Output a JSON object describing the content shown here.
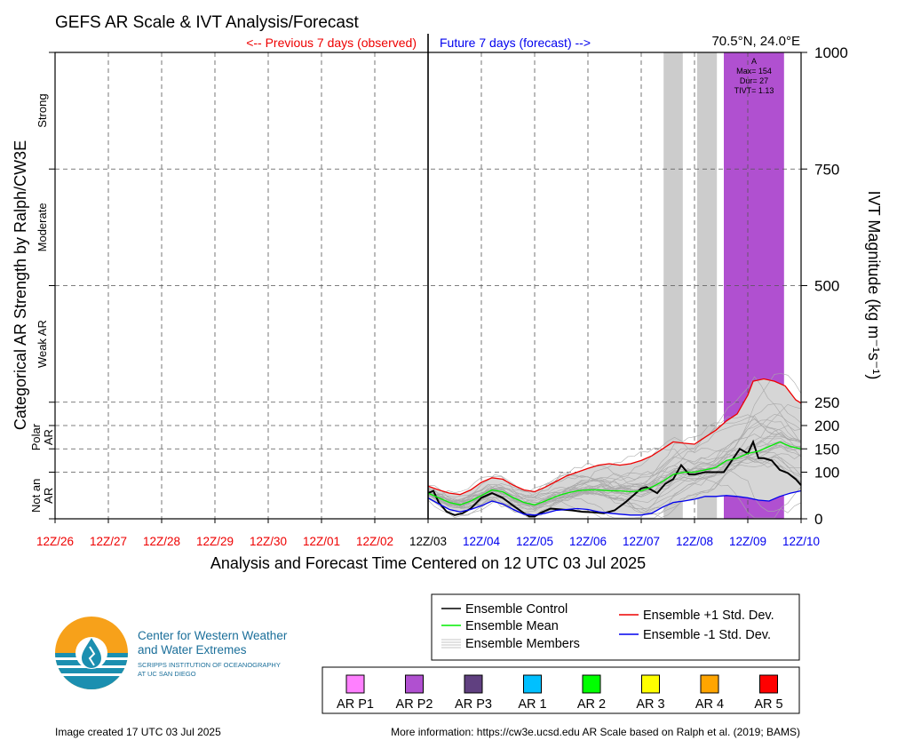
{
  "title": "GEFS AR Scale & IVT Analysis/Forecast",
  "prev_label": "<-- Previous 7 days (observed)",
  "future_label": "Future 7 days (forecast) -->",
  "location": "70.5°N, 24.0°E",
  "footer": {
    "created": "Image created 17 UTC 03 Jul 2025",
    "more_info": "More information: https://cw3e.ucsd.edu AR Scale based on Ralph et al. (2019; BAMS)"
  },
  "logo": {
    "line1": "Center for Western Weather",
    "line2": "and Water Extremes",
    "line3": "SCRIPPS INSTITUTION OF OCEANOGRAPHY",
    "line4": "AT UC SAN DIEGO"
  },
  "legend": {
    "items": [
      {
        "label": "Ensemble Control",
        "color": "#000000"
      },
      {
        "label": "Ensemble Mean",
        "color": "#00ee00"
      },
      {
        "label": "Ensemble Members",
        "color": "#b0b0b0"
      },
      {
        "label": "Ensemble +1 Std. Dev.",
        "color": "#ee0000"
      },
      {
        "label": "Ensemble -1 Std. Dev.",
        "color": "#0000ee"
      }
    ]
  },
  "ar_scale_legend": [
    {
      "label": "AR P1",
      "color": "#ff80ff"
    },
    {
      "label": "AR P2",
      "color": "#b050d0"
    },
    {
      "label": "AR P3",
      "color": "#604080"
    },
    {
      "label": "AR 1",
      "color": "#00c0ff"
    },
    {
      "label": "AR 2",
      "color": "#00ff00"
    },
    {
      "label": "AR 3",
      "color": "#ffff00"
    },
    {
      "label": "AR 4",
      "color": "#ffa500"
    },
    {
      "label": "AR 5",
      "color": "#ff0000"
    }
  ],
  "chart_data": {
    "type": "line",
    "title": "GEFS AR Scale & IVT Analysis/Forecast",
    "xlabel": "Analysis and Forecast Time Centered on 12 UTC 03 Jul 2025",
    "ylabel_right": "IVT Magnitude (kg m⁻¹s⁻¹)",
    "ylabel_left": "Categorical AR Strength by Ralph/CW3E",
    "x_ticks": [
      "12Z/26",
      "12Z/27",
      "12Z/28",
      "12Z/29",
      "12Z/30",
      "12Z/01",
      "12Z/02",
      "12Z/03",
      "12Z/04",
      "12Z/05",
      "12Z/06",
      "12Z/07",
      "12Z/08",
      "12Z/09",
      "12Z/10"
    ],
    "x_tick_colors": [
      "#ee0000",
      "#ee0000",
      "#ee0000",
      "#ee0000",
      "#ee0000",
      "#ee0000",
      "#ee0000",
      "#000000",
      "#0000ee",
      "#0000ee",
      "#0000ee",
      "#0000ee",
      "#0000ee",
      "#0000ee",
      "#0000ee"
    ],
    "y_ticks": [
      0,
      100,
      150,
      200,
      250,
      500,
      750,
      1000
    ],
    "ylim": [
      0,
      1000
    ],
    "categories": [
      {
        "label": "Not an AR",
        "range": [
          0,
          100
        ]
      },
      {
        "label": "Polar AR",
        "range": [
          100,
          250
        ]
      },
      {
        "label": "Weak AR",
        "range": [
          250,
          500
        ]
      },
      {
        "label": "Moderate",
        "range": [
          500,
          750
        ]
      },
      {
        "label": "Strong",
        "range": [
          750,
          1000
        ]
      }
    ],
    "forecast_day_start": 7,
    "annotation": {
      "lines": [
        "A",
        "Max= 154",
        "Dur= 27",
        "TIVT= 1.13"
      ]
    },
    "ar_windows": [
      {
        "start": 11.42,
        "end": 11.78,
        "color": "#cccccc"
      },
      {
        "start": 12.05,
        "end": 12.42,
        "color": "#cccccc"
      },
      {
        "start": 12.55,
        "end": 13.68,
        "color": "#b050d0"
      }
    ],
    "series": [
      {
        "name": "Ensemble Control",
        "color": "#000000",
        "x": [
          7.0,
          7.1,
          7.2,
          7.35,
          7.5,
          7.65,
          7.8,
          8.0,
          8.2,
          8.4,
          8.6,
          8.8,
          8.9,
          9.0,
          9.1,
          9.3,
          9.5,
          9.7,
          9.9,
          10.1,
          10.3,
          10.5,
          10.7,
          10.9,
          11.0,
          11.1,
          11.3,
          11.45,
          11.6,
          11.75,
          11.9,
          12.0,
          12.2,
          12.4,
          12.55,
          12.7,
          12.85,
          13.0,
          13.1,
          13.2,
          13.3,
          13.45,
          13.6,
          13.75,
          13.9,
          14.0
        ],
        "y": [
          55,
          60,
          35,
          15,
          8,
          12,
          22,
          45,
          55,
          45,
          28,
          12,
          5,
          5,
          12,
          22,
          20,
          18,
          15,
          14,
          12,
          18,
          35,
          55,
          65,
          68,
          55,
          75,
          85,
          115,
          95,
          95,
          100,
          100,
          100,
          125,
          150,
          140,
          165,
          130,
          130,
          125,
          105,
          98,
          85,
          72
        ]
      },
      {
        "name": "Ensemble Mean",
        "color": "#00ee00",
        "x": [
          7.0,
          7.2,
          7.4,
          7.6,
          7.8,
          8.0,
          8.2,
          8.4,
          8.6,
          8.8,
          9.0,
          9.2,
          9.4,
          9.6,
          9.8,
          10.0,
          10.2,
          10.4,
          10.6,
          10.8,
          11.0,
          11.2,
          11.4,
          11.6,
          11.8,
          12.0,
          12.2,
          12.4,
          12.6,
          12.8,
          13.0,
          13.2,
          13.4,
          13.6,
          13.8,
          14.0
        ],
        "y": [
          55,
          45,
          35,
          30,
          38,
          50,
          62,
          58,
          45,
          35,
          30,
          38,
          48,
          55,
          60,
          62,
          62,
          60,
          60,
          58,
          60,
          68,
          80,
          95,
          100,
          100,
          105,
          110,
          125,
          130,
          140,
          145,
          155,
          165,
          155,
          150
        ]
      },
      {
        "name": "Ensemble +1 Std. Dev.",
        "color": "#ee0000",
        "x": [
          7.0,
          7.2,
          7.4,
          7.6,
          7.8,
          8.0,
          8.2,
          8.4,
          8.6,
          8.8,
          9.0,
          9.2,
          9.4,
          9.6,
          9.8,
          10.0,
          10.2,
          10.4,
          10.6,
          10.8,
          11.0,
          11.2,
          11.4,
          11.6,
          11.8,
          12.0,
          12.2,
          12.4,
          12.6,
          12.8,
          13.0,
          13.1,
          13.3,
          13.5,
          13.7,
          13.9,
          14.0
        ],
        "y": [
          70,
          62,
          55,
          52,
          62,
          78,
          88,
          85,
          72,
          62,
          58,
          68,
          80,
          92,
          100,
          108,
          115,
          118,
          115,
          118,
          125,
          135,
          150,
          165,
          162,
          160,
          175,
          190,
          210,
          225,
          265,
          295,
          300,
          295,
          285,
          255,
          248
        ]
      },
      {
        "name": "Ensemble -1 Std. Dev.",
        "color": "#0000ee",
        "x": [
          7.0,
          7.2,
          7.4,
          7.6,
          7.8,
          8.0,
          8.2,
          8.4,
          8.6,
          8.8,
          9.0,
          9.2,
          9.4,
          9.6,
          9.8,
          10.0,
          10.2,
          10.4,
          10.6,
          10.8,
          11.0,
          11.2,
          11.4,
          11.6,
          11.8,
          12.0,
          12.2,
          12.4,
          12.6,
          12.8,
          13.0,
          13.2,
          13.4,
          13.6,
          13.8,
          14.0
        ],
        "y": [
          45,
          32,
          20,
          15,
          20,
          28,
          38,
          32,
          20,
          10,
          8,
          12,
          18,
          20,
          22,
          20,
          15,
          12,
          10,
          8,
          8,
          12,
          25,
          35,
          38,
          42,
          48,
          48,
          50,
          48,
          45,
          40,
          38,
          48,
          55,
          60
        ]
      }
    ]
  }
}
